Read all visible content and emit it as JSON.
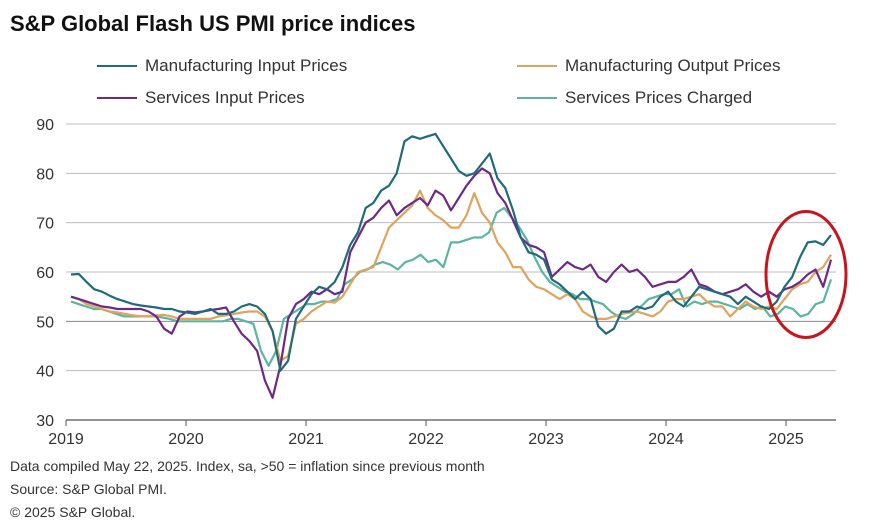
{
  "title": "S&P Global Flash US PMI price indices",
  "footnotes": [
    "Data compiled May 22, 2025. Index, sa, >50 = inflation since previous month",
    "Source: S&P Global PMI.",
    "© 2025 S&P Global."
  ],
  "chart_data": {
    "type": "line",
    "title": "S&P Global Flash US PMI price indices",
    "xlabel": "",
    "ylabel": "",
    "x_start": "2019-01",
    "x_end": "2025-05",
    "x_ticks": [
      "2019",
      "2020",
      "2021",
      "2022",
      "2023",
      "2024",
      "2025"
    ],
    "y_ticks": [
      30,
      40,
      50,
      60,
      70,
      80,
      90
    ],
    "ylim": [
      30,
      90
    ],
    "grid": "horizontal",
    "legend": "top",
    "annotation": "red ellipse highlighting early 2025",
    "series": [
      {
        "name": "Manufacturing Input Prices",
        "color": "#1f6b7a",
        "values": [
          59.5,
          59.6,
          58,
          56.5,
          56,
          55.2,
          54.5,
          54,
          53.5,
          53.2,
          53,
          52.8,
          52.5,
          52.5,
          52,
          51.8,
          51.5,
          52,
          52.5,
          51.5,
          51.5,
          52,
          53,
          53.5,
          53,
          51.5,
          48,
          40,
          42,
          50.5,
          53,
          55.5,
          57,
          56.5,
          58,
          61,
          65.5,
          68,
          73,
          74,
          76.5,
          77.5,
          80,
          86.5,
          87.5,
          87,
          87.5,
          88,
          85.5,
          83,
          80.5,
          79.5,
          80,
          82,
          84,
          79,
          77,
          72.5,
          67,
          64,
          63.5,
          62.5,
          58.5,
          57.5,
          56,
          54.5,
          56,
          54.5,
          49,
          47.5,
          48.5,
          52,
          52,
          53,
          52.5,
          53,
          55,
          56,
          54,
          53,
          55,
          57,
          56.5,
          56,
          55.5,
          55,
          53.5,
          55,
          54,
          53,
          52.5,
          54,
          57,
          59,
          63,
          66,
          66.2,
          65.5,
          67.5
        ]
      },
      {
        "name": "Manufacturing Output Prices",
        "color": "#e0a35c",
        "values": [
          55,
          54.5,
          53.5,
          53,
          52.5,
          52,
          51.8,
          51.5,
          51.2,
          51,
          51,
          51.2,
          51.3,
          51,
          50.5,
          50.5,
          50.5,
          50.5,
          50.5,
          51,
          51.2,
          51.5,
          51.8,
          52,
          52,
          51,
          48,
          42,
          43,
          49.5,
          50.5,
          52,
          53,
          54,
          53.8,
          55,
          57.5,
          60,
          60.5,
          61,
          65,
          69,
          70.5,
          72,
          73.5,
          76.5,
          73,
          71.5,
          70.5,
          69,
          69,
          71.5,
          76,
          72,
          70,
          66,
          64,
          61,
          61,
          58.5,
          57,
          56.5,
          55.5,
          54.5,
          55.5,
          54.5,
          52,
          51,
          50.5,
          50.5,
          51,
          51.5,
          51.8,
          52,
          51.5,
          51,
          52,
          54,
          54.5,
          54.5,
          55,
          55.5,
          54,
          53,
          53,
          51,
          52.5,
          54,
          53,
          52.5,
          53,
          52.5,
          54.5,
          56.5,
          57.5,
          58,
          60,
          61,
          63.5
        ]
      },
      {
        "name": "Services Input Prices",
        "color": "#6c2a85",
        "values": [
          55,
          54.5,
          54,
          53.5,
          53,
          52.8,
          52.5,
          52.5,
          52.5,
          52.5,
          52,
          51,
          48.5,
          47.5,
          51,
          52,
          51.8,
          52,
          52.3,
          52.5,
          52.8,
          50,
          47.5,
          46,
          44,
          38,
          34.5,
          41,
          50.5,
          53.5,
          54.5,
          56,
          55.5,
          56.5,
          55.5,
          56,
          64,
          67,
          70,
          71,
          73,
          74.5,
          71.5,
          73,
          74,
          75,
          73.5,
          76.5,
          75.5,
          72.5,
          75,
          77.5,
          79.5,
          81,
          80,
          76,
          74,
          70.5,
          67,
          65.5,
          65,
          64,
          59,
          60.5,
          62,
          61,
          60.5,
          61.5,
          59,
          58,
          60,
          61.5,
          60,
          60.5,
          59,
          57,
          57.5,
          58,
          58,
          59,
          60.5,
          57.5,
          57,
          56,
          55.5,
          56,
          56.5,
          57.5,
          56,
          55,
          56,
          55,
          56.5,
          57,
          58,
          59.5,
          60.5,
          57,
          62.5
        ]
      },
      {
        "name": "Services Prices Charged",
        "color": "#5bb5a0",
        "values": [
          54,
          53.5,
          53,
          52.5,
          52.5,
          52,
          51.5,
          51,
          51,
          51,
          51,
          51,
          50.8,
          50.5,
          50,
          50,
          50,
          50,
          50,
          50,
          50,
          50.5,
          50.5,
          50,
          49.5,
          44,
          41,
          44,
          50.5,
          51.5,
          52.5,
          53.5,
          53.5,
          54,
          54,
          54.5,
          57.5,
          58.5,
          60,
          60.5,
          61.5,
          62,
          61.5,
          60.5,
          62,
          62.5,
          63.5,
          62,
          62.5,
          61,
          66,
          66,
          66.5,
          67,
          67,
          68,
          72,
          73,
          71,
          69,
          66.5,
          63,
          60,
          58,
          57,
          56,
          55.5,
          54.5,
          54.5,
          54,
          53.5,
          52,
          51,
          50.5,
          51.5,
          53,
          54.5,
          55,
          55.5,
          55.5,
          56.5,
          53,
          54,
          53.5,
          54,
          54,
          53.5,
          53,
          52.5,
          53.5,
          52.5,
          53,
          51,
          51.5,
          53,
          52.5,
          51,
          51.5,
          53.5,
          54,
          58.5
        ]
      }
    ]
  }
}
